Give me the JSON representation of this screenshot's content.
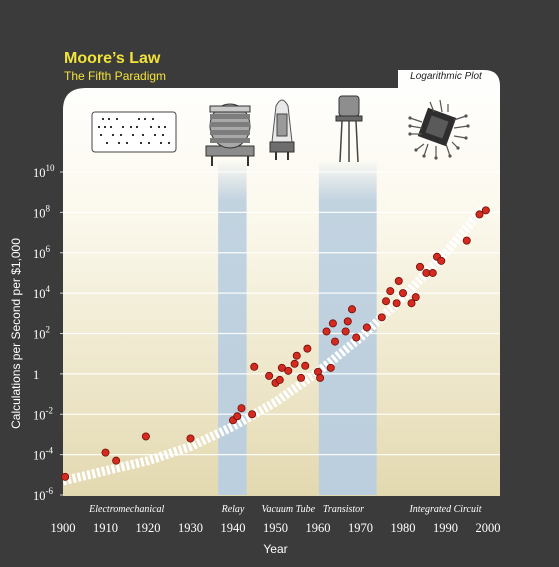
{
  "header": {
    "title": "Moore’s Law",
    "subtitle": "The Fifth Paradigm",
    "plot_note": "Logarithmic Plot"
  },
  "colors": {
    "background": "#3b3b3b",
    "title": "#f2e33b",
    "plot_top": "#ffffff",
    "plot_bottom": "#e6dcb3",
    "highlight_band": "#bccfdf",
    "point_fill": "#d42a1f",
    "trend": "#ffffff"
  },
  "icons": [
    {
      "name": "punch-card-icon"
    },
    {
      "name": "relay-icon"
    },
    {
      "name": "vacuum-tube-icon"
    },
    {
      "name": "transistor-icon"
    },
    {
      "name": "integrated-circuit-icon"
    }
  ],
  "chart_data": {
    "type": "scatter",
    "scale": "log",
    "xlabel": "Year",
    "ylabel": "Calculations per Second per $1,000",
    "xlim": [
      1900,
      2000
    ],
    "ylim_exponent": [
      -6,
      10
    ],
    "x_ticks": [
      "1900",
      "1910",
      "1920",
      "1930",
      "1940",
      "1950",
      "1960",
      "1970",
      "1980",
      "1990",
      "2000"
    ],
    "y_ticks": [
      {
        "exp": -6,
        "base": "10",
        "sup": "-6"
      },
      {
        "exp": -4,
        "base": "10",
        "sup": "-4"
      },
      {
        "exp": -2,
        "base": "10",
        "sup": "-2"
      },
      {
        "exp": 0,
        "base": "1",
        "sup": ""
      },
      {
        "exp": 2,
        "base": "10",
        "sup": "2"
      },
      {
        "exp": 4,
        "base": "10",
        "sup": "4"
      },
      {
        "exp": 6,
        "base": "10",
        "sup": "6"
      },
      {
        "exp": 8,
        "base": "10",
        "sup": "8"
      },
      {
        "exp": 10,
        "base": "10",
        "sup": "10"
      }
    ],
    "paradigms": [
      {
        "label": "Electromechanical",
        "year": 1915
      },
      {
        "label": "Relay",
        "year": 1940
      },
      {
        "label": "Vacuum Tube",
        "year": 1953
      },
      {
        "label": "Transistor",
        "year": 1966
      },
      {
        "label": "Integrated Circuit",
        "year": 1990
      }
    ],
    "highlight_bands": [
      {
        "from": 1936.5,
        "to": 1943.2
      },
      {
        "from": 1960.2,
        "to": 1973.8
      }
    ],
    "trend": [
      [
        1900,
        -5.3
      ],
      [
        1920,
        -4.3
      ],
      [
        1930,
        -3.6
      ],
      [
        1940,
        -2.6
      ],
      [
        1950,
        -1.4
      ],
      [
        1960,
        0.1
      ],
      [
        1970,
        1.8
      ],
      [
        1980,
        3.8
      ],
      [
        1990,
        6.0
      ],
      [
        1999,
        8.2
      ]
    ],
    "points": [
      [
        1900.5,
        -5.1
      ],
      [
        1910,
        -3.9
      ],
      [
        1912.5,
        -4.3
      ],
      [
        1919.5,
        -3.1
      ],
      [
        1930,
        -3.2
      ],
      [
        1940,
        -2.3
      ],
      [
        1941,
        -2.1
      ],
      [
        1942,
        -1.7
      ],
      [
        1944.5,
        -2.0
      ],
      [
        1945,
        0.35
      ],
      [
        1948.5,
        -0.1
      ],
      [
        1950,
        -0.45
      ],
      [
        1951,
        -0.3
      ],
      [
        1951.5,
        0.3
      ],
      [
        1953,
        0.15
      ],
      [
        1954.5,
        0.5
      ],
      [
        1955,
        0.9
      ],
      [
        1956,
        -0.2
      ],
      [
        1957,
        0.4
      ],
      [
        1957.5,
        1.25
      ],
      [
        1960,
        0.1
      ],
      [
        1960.5,
        -0.2
      ],
      [
        1962,
        2.1
      ],
      [
        1963,
        0.3
      ],
      [
        1963.5,
        2.5
      ],
      [
        1964,
        1.6
      ],
      [
        1966.5,
        2.1
      ],
      [
        1967,
        2.6
      ],
      [
        1968,
        3.2
      ],
      [
        1969,
        1.8
      ],
      [
        1971.5,
        2.3
      ],
      [
        1975,
        2.8
      ],
      [
        1976,
        3.6
      ],
      [
        1977,
        4.1
      ],
      [
        1978.5,
        3.5
      ],
      [
        1979,
        4.6
      ],
      [
        1980,
        4.0
      ],
      [
        1982,
        3.5
      ],
      [
        1983,
        3.8
      ],
      [
        1984,
        5.3
      ],
      [
        1985.5,
        5.0
      ],
      [
        1987,
        5.0
      ],
      [
        1988,
        5.8
      ],
      [
        1989,
        5.6
      ],
      [
        1995,
        6.6
      ],
      [
        1998,
        7.9
      ],
      [
        1999.5,
        8.1
      ]
    ]
  }
}
